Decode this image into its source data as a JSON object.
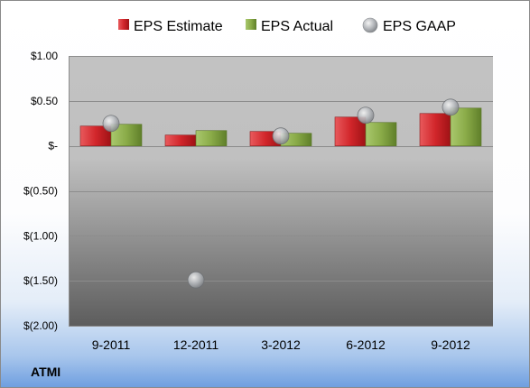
{
  "chart_data": {
    "type": "bar",
    "title": "",
    "ticker": "ATMI",
    "categories": [
      "9-2011",
      "12-2011",
      "3-2012",
      "6-2012",
      "9-2012"
    ],
    "series": [
      {
        "name": "EPS Estimate",
        "kind": "bar",
        "color": "#cc2a2e",
        "values": [
          0.22,
          0.12,
          0.16,
          0.32,
          0.36
        ]
      },
      {
        "name": "EPS Actual",
        "kind": "bar",
        "color": "#86a843",
        "values": [
          0.24,
          0.17,
          0.14,
          0.26,
          0.42
        ]
      },
      {
        "name": "EPS GAAP",
        "kind": "marker",
        "color": "#b5b8bc",
        "values": [
          0.25,
          -1.49,
          0.11,
          0.34,
          0.43
        ]
      }
    ],
    "ylim": [
      -2.0,
      1.0
    ],
    "yticks": [
      1.0,
      0.5,
      0.0,
      -0.5,
      -1.0,
      -1.5,
      -2.0
    ],
    "ytick_labels": [
      "$1.00",
      "$0.50",
      "$-",
      "$(0.50)",
      "$(1.00)",
      "$(1.50)",
      "$(2.00)"
    ],
    "legend_position": "top",
    "grid": true
  }
}
